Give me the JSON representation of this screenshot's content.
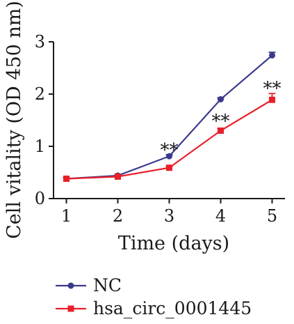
{
  "chart_data": {
    "type": "line",
    "title": "",
    "xlabel": "Time (days)",
    "ylabel": "Cell vitality (OD 450 nm)",
    "x": [
      1,
      2,
      3,
      4,
      5
    ],
    "xlim": [
      0.75,
      5.25
    ],
    "ylim": [
      0,
      3
    ],
    "xticks": [
      "1",
      "2",
      "3",
      "4",
      "5"
    ],
    "yticks": [
      "0",
      "1",
      "2",
      "3"
    ],
    "grid": false,
    "legend_position": "bottom-left",
    "series": [
      {
        "name": "NC",
        "color": "#3a3a8c",
        "marker": "circle",
        "values": [
          0.38,
          0.44,
          0.81,
          1.9,
          2.74
        ],
        "errors": [
          0.02,
          0.02,
          0.03,
          0.03,
          0.06
        ]
      },
      {
        "name": "hsa_circ_0001445",
        "color": "#e8202a",
        "marker": "square",
        "values": [
          0.38,
          0.42,
          0.59,
          1.3,
          1.89
        ],
        "errors": [
          0.02,
          0.02,
          0.03,
          0.04,
          0.12
        ]
      }
    ],
    "annotations": [
      {
        "x": 3,
        "y": 0.87,
        "text": "**"
      },
      {
        "x": 4,
        "y": 1.42,
        "text": "**"
      },
      {
        "x": 5,
        "y": 2.05,
        "text": "**"
      }
    ]
  }
}
